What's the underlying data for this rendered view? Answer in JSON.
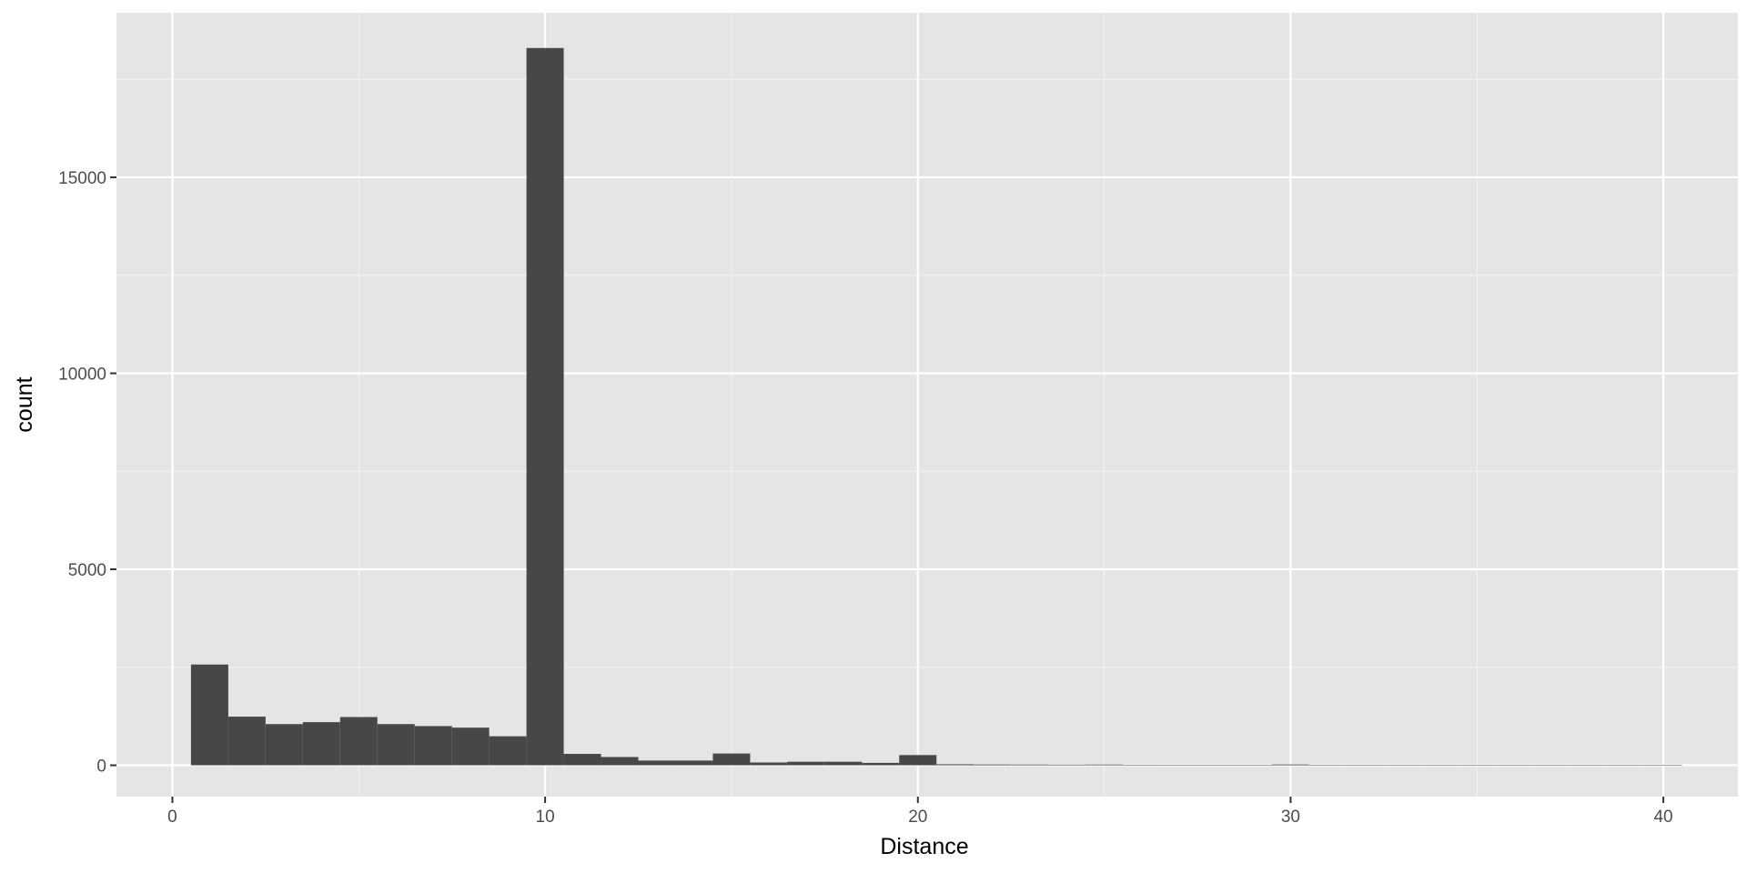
{
  "chart_data": {
    "type": "bar",
    "title": "",
    "xlabel": "Distance",
    "ylabel": "count",
    "xlim": [
      -1.5,
      42
    ],
    "ylim": [
      -800,
      19200
    ],
    "x_ticks": [
      0,
      10,
      20,
      30,
      40
    ],
    "x_tick_labels": [
      "0",
      "10",
      "20",
      "30",
      "40"
    ],
    "y_ticks": [
      0,
      5000,
      10000,
      15000
    ],
    "y_tick_labels": [
      "0",
      "5000",
      "10000",
      "15000"
    ],
    "bin_width": 1,
    "bins": [
      {
        "x": 1,
        "count": 2570
      },
      {
        "x": 2,
        "count": 1240
      },
      {
        "x": 3,
        "count": 1050
      },
      {
        "x": 4,
        "count": 1100
      },
      {
        "x": 5,
        "count": 1230
      },
      {
        "x": 6,
        "count": 1050
      },
      {
        "x": 7,
        "count": 1000
      },
      {
        "x": 8,
        "count": 960
      },
      {
        "x": 9,
        "count": 740
      },
      {
        "x": 10,
        "count": 18300
      },
      {
        "x": 11,
        "count": 290
      },
      {
        "x": 12,
        "count": 210
      },
      {
        "x": 13,
        "count": 120
      },
      {
        "x": 14,
        "count": 120
      },
      {
        "x": 15,
        "count": 300
      },
      {
        "x": 16,
        "count": 70
      },
      {
        "x": 17,
        "count": 90
      },
      {
        "x": 18,
        "count": 90
      },
      {
        "x": 19,
        "count": 60
      },
      {
        "x": 20,
        "count": 260
      },
      {
        "x": 21,
        "count": 25
      },
      {
        "x": 22,
        "count": 20
      },
      {
        "x": 23,
        "count": 18
      },
      {
        "x": 24,
        "count": 15
      },
      {
        "x": 25,
        "count": 18
      },
      {
        "x": 26,
        "count": 12
      },
      {
        "x": 27,
        "count": 10
      },
      {
        "x": 28,
        "count": 5
      },
      {
        "x": 29,
        "count": 5
      },
      {
        "x": 30,
        "count": 20
      },
      {
        "x": 31,
        "count": 4
      },
      {
        "x": 32,
        "count": 3
      },
      {
        "x": 33,
        "count": 3
      },
      {
        "x": 34,
        "count": 3
      },
      {
        "x": 35,
        "count": 6
      },
      {
        "x": 36,
        "count": 2
      },
      {
        "x": 37,
        "count": 2
      },
      {
        "x": 38,
        "count": 2
      },
      {
        "x": 39,
        "count": 2
      },
      {
        "x": 40,
        "count": 4
      }
    ],
    "grid": true,
    "colors": {
      "panel_background": "#e5e5e5",
      "grid_major": "#ffffff",
      "grid_minor": "#f2f2f2",
      "bar_fill": "#474747",
      "tick_color": "#333333"
    }
  }
}
